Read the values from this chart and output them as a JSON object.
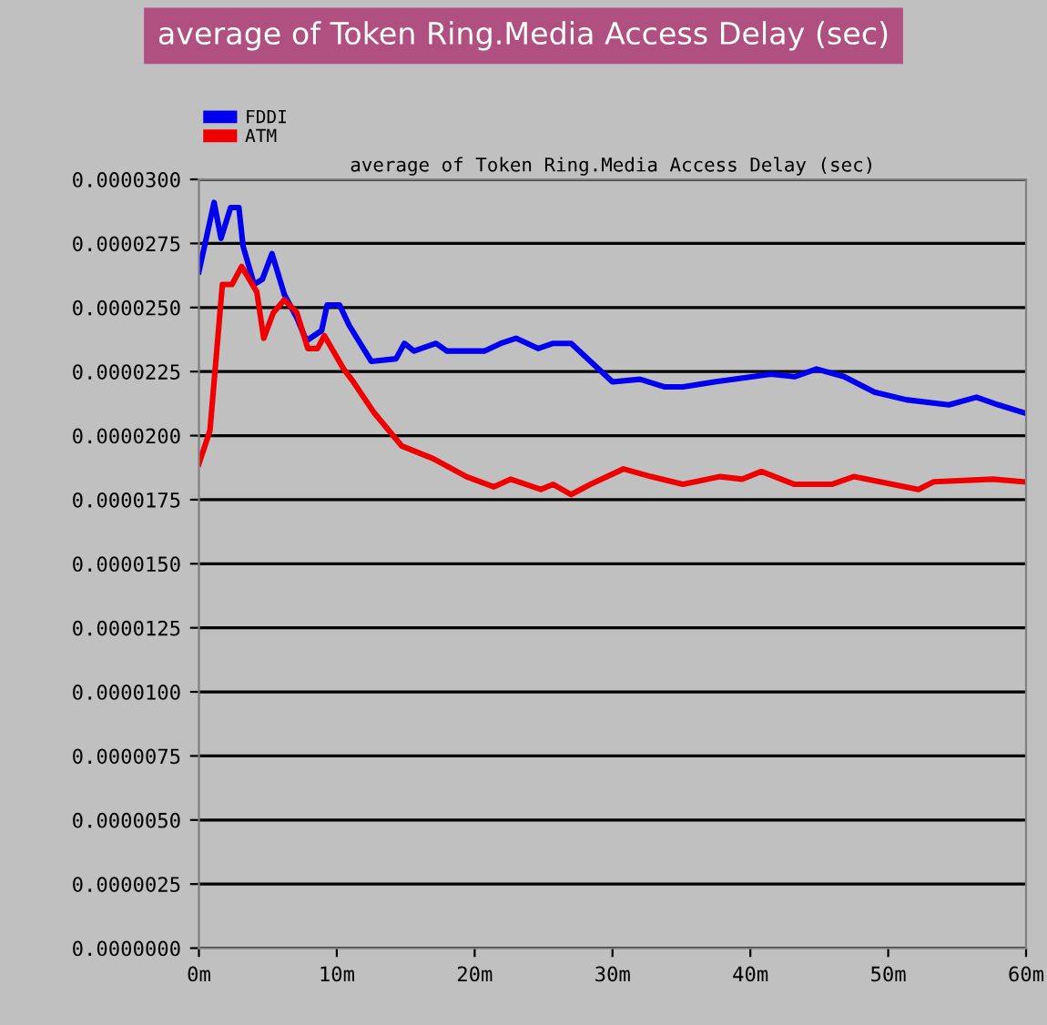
{
  "chart_data": {
    "type": "line",
    "title": "average of Token Ring.Media Access Delay (sec)",
    "subtitle": "average of Token Ring.Media Access Delay (sec)",
    "xlim": [
      0,
      60
    ],
    "xticks": [
      {
        "value": 0,
        "label": "0m"
      },
      {
        "value": 10,
        "label": "10m"
      },
      {
        "value": 20,
        "label": "20m"
      },
      {
        "value": 30,
        "label": "30m"
      },
      {
        "value": 40,
        "label": "40m"
      },
      {
        "value": 50,
        "label": "50m"
      },
      {
        "value": 60,
        "label": "60m"
      }
    ],
    "ylim": [
      0,
      3e-05
    ],
    "yticks": [
      {
        "value": 0,
        "label": "0.0000000"
      },
      {
        "value": 2.5e-06,
        "label": "0.0000025"
      },
      {
        "value": 5e-06,
        "label": "0.0000050"
      },
      {
        "value": 7.5e-06,
        "label": "0.0000075"
      },
      {
        "value": 1e-05,
        "label": "0.0000100"
      },
      {
        "value": 1.25e-05,
        "label": "0.0000125"
      },
      {
        "value": 1.5e-05,
        "label": "0.0000150"
      },
      {
        "value": 1.75e-05,
        "label": "0.0000175"
      },
      {
        "value": 2e-05,
        "label": "0.0000200"
      },
      {
        "value": 2.25e-05,
        "label": "0.0000225"
      },
      {
        "value": 2.5e-05,
        "label": "0.0000250"
      },
      {
        "value": 2.75e-05,
        "label": "0.0000275"
      },
      {
        "value": 3e-05,
        "label": "0.0000300"
      }
    ],
    "grid": "y",
    "legend": "top left",
    "line_style": "solid",
    "series": [
      {
        "name": "FDDI",
        "color": "#0000ee",
        "x": [
          0,
          1.1,
          1.6,
          2.3,
          2.9,
          3.2,
          4.0,
          4.6,
          5.3,
          6.2,
          7.1,
          7.8,
          8.9,
          9.3,
          10.2,
          10.9,
          12.5,
          14.3,
          14.9,
          15.6,
          17.2,
          18,
          20.7,
          21.9,
          23,
          24.6,
          25.7,
          27,
          28.4,
          30,
          32,
          33.8,
          35.1,
          37.4,
          41.5,
          43.2,
          44.8,
          46.8,
          49,
          51.3,
          54.4,
          56.4,
          58,
          59.8
        ],
        "values": [
          2.64e-05,
          2.91e-05,
          2.77e-05,
          2.89e-05,
          2.89e-05,
          2.74e-05,
          2.59e-05,
          2.61e-05,
          2.71e-05,
          2.55e-05,
          2.46e-05,
          2.37e-05,
          2.41e-05,
          2.51e-05,
          2.51e-05,
          2.43e-05,
          2.29e-05,
          2.3e-05,
          2.36e-05,
          2.33e-05,
          2.36e-05,
          2.33e-05,
          2.33e-05,
          2.36e-05,
          2.38e-05,
          2.34e-05,
          2.36e-05,
          2.36e-05,
          2.29e-05,
          2.21e-05,
          2.22e-05,
          2.19e-05,
          2.19e-05,
          2.21e-05,
          2.24e-05,
          2.23e-05,
          2.26e-05,
          2.23e-05,
          2.17e-05,
          2.14e-05,
          2.12e-05,
          2.15e-05,
          2.12e-05,
          2.09e-05
        ]
      },
      {
        "name": "ATM",
        "color": "#ee0000",
        "x": [
          0,
          0.8,
          1.7,
          2.4,
          3.1,
          4.2,
          4.7,
          5.4,
          6.2,
          7.1,
          7.9,
          8.6,
          9.1,
          10.5,
          11.2,
          12.7,
          14.7,
          15.6,
          17,
          19.4,
          21.4,
          22.6,
          24.8,
          25.7,
          27,
          28.4,
          30.8,
          32.8,
          35.1,
          37.8,
          39.4,
          40.8,
          43.2,
          45.9,
          47.5,
          52.2,
          53.3,
          57.6,
          59.8
        ],
        "values": [
          1.89e-05,
          2.02e-05,
          2.59e-05,
          2.59e-05,
          2.66e-05,
          2.56e-05,
          2.38e-05,
          2.48e-05,
          2.53e-05,
          2.48e-05,
          2.34e-05,
          2.34e-05,
          2.39e-05,
          2.26e-05,
          2.21e-05,
          2.09e-05,
          1.96e-05,
          1.94e-05,
          1.91e-05,
          1.84e-05,
          1.8e-05,
          1.83e-05,
          1.79e-05,
          1.81e-05,
          1.77e-05,
          1.81e-05,
          1.87e-05,
          1.84e-05,
          1.81e-05,
          1.84e-05,
          1.83e-05,
          1.86e-05,
          1.81e-05,
          1.81e-05,
          1.84e-05,
          1.79e-05,
          1.82e-05,
          1.83e-05,
          1.82e-05
        ]
      }
    ]
  }
}
